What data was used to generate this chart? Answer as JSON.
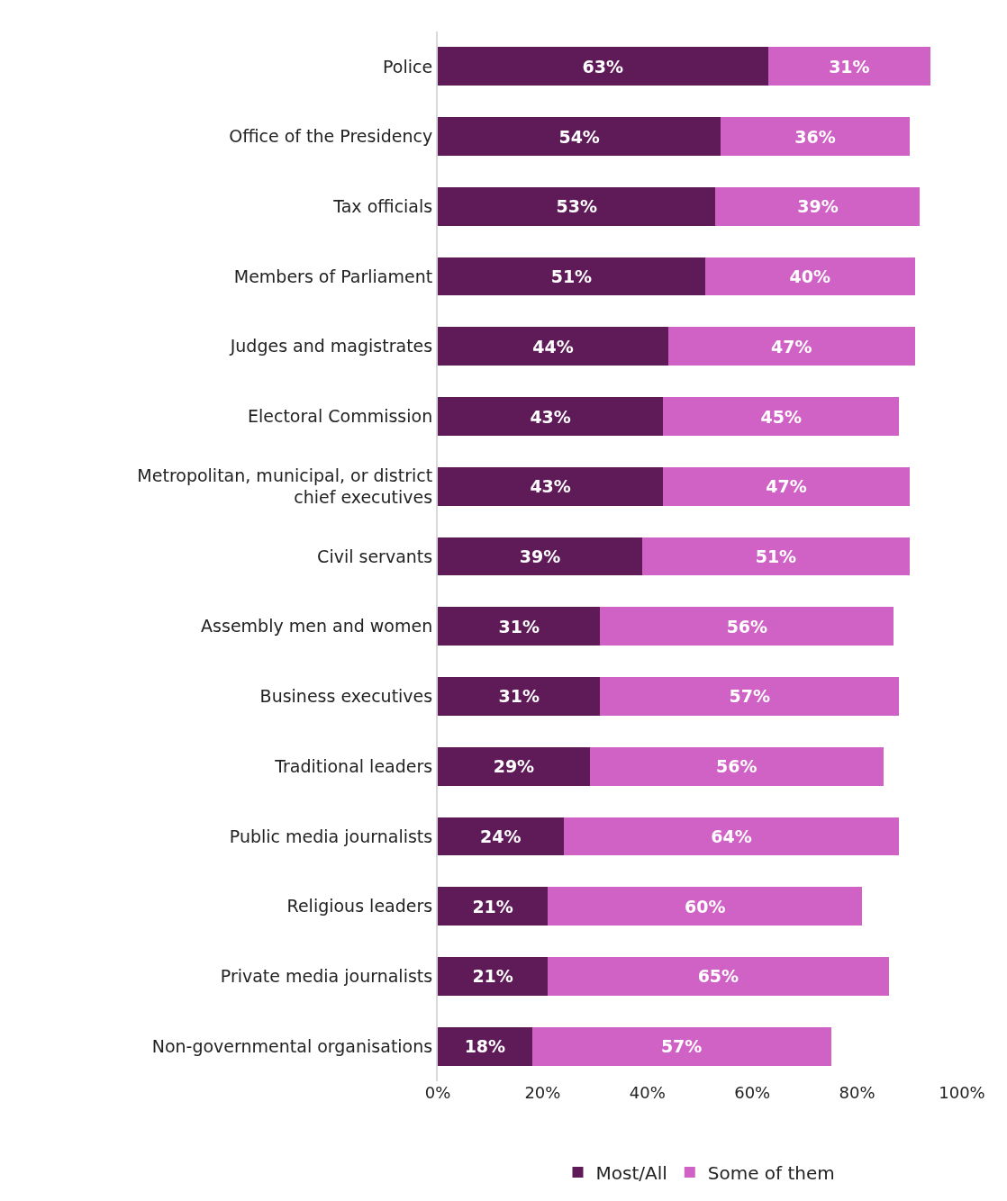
{
  "chart_data": {
    "type": "bar",
    "orientation": "horizontal",
    "stacked": true,
    "categories": [
      "Police",
      "Office of the Presidency",
      "Tax officials",
      "Members of Parliament",
      "Judges and magistrates",
      "Electoral Commission",
      "Metropolitan, municipal, or district chief executives",
      "Civil servants",
      "Assembly men and women",
      "Business executives",
      "Traditional leaders",
      "Public media journalists",
      "Religious leaders",
      "Private media journalists",
      "Non-governmental organisations"
    ],
    "series": [
      {
        "name": "Most/All",
        "color": "#5f1b58",
        "values": [
          63,
          54,
          53,
          51,
          44,
          43,
          43,
          39,
          31,
          31,
          29,
          24,
          21,
          21,
          18
        ],
        "value_labels": [
          "63%",
          "54%",
          "53%",
          "51%",
          "44%",
          "43%",
          "43%",
          "39%",
          "31%",
          "31%",
          "29%",
          "24%",
          "21%",
          "21%",
          "18%"
        ]
      },
      {
        "name": "Some of them",
        "color": "#d062c6",
        "values": [
          31,
          36,
          39,
          40,
          47,
          45,
          47,
          51,
          56,
          57,
          56,
          64,
          60,
          65,
          57
        ],
        "value_labels": [
          "31%",
          "36%",
          "39%",
          "40%",
          "47%",
          "45%",
          "47%",
          "51%",
          "56%",
          "57%",
          "56%",
          "64%",
          "60%",
          "65%",
          "57%"
        ]
      }
    ],
    "xlim": [
      0,
      100
    ],
    "xticks": [
      {
        "value": 0,
        "label": "0%"
      },
      {
        "value": 20,
        "label": "20%"
      },
      {
        "value": 40,
        "label": "40%"
      },
      {
        "value": 60,
        "label": "60%"
      },
      {
        "value": 80,
        "label": "80%"
      },
      {
        "value": 100,
        "label": "100%"
      }
    ],
    "legend": "bottom"
  }
}
